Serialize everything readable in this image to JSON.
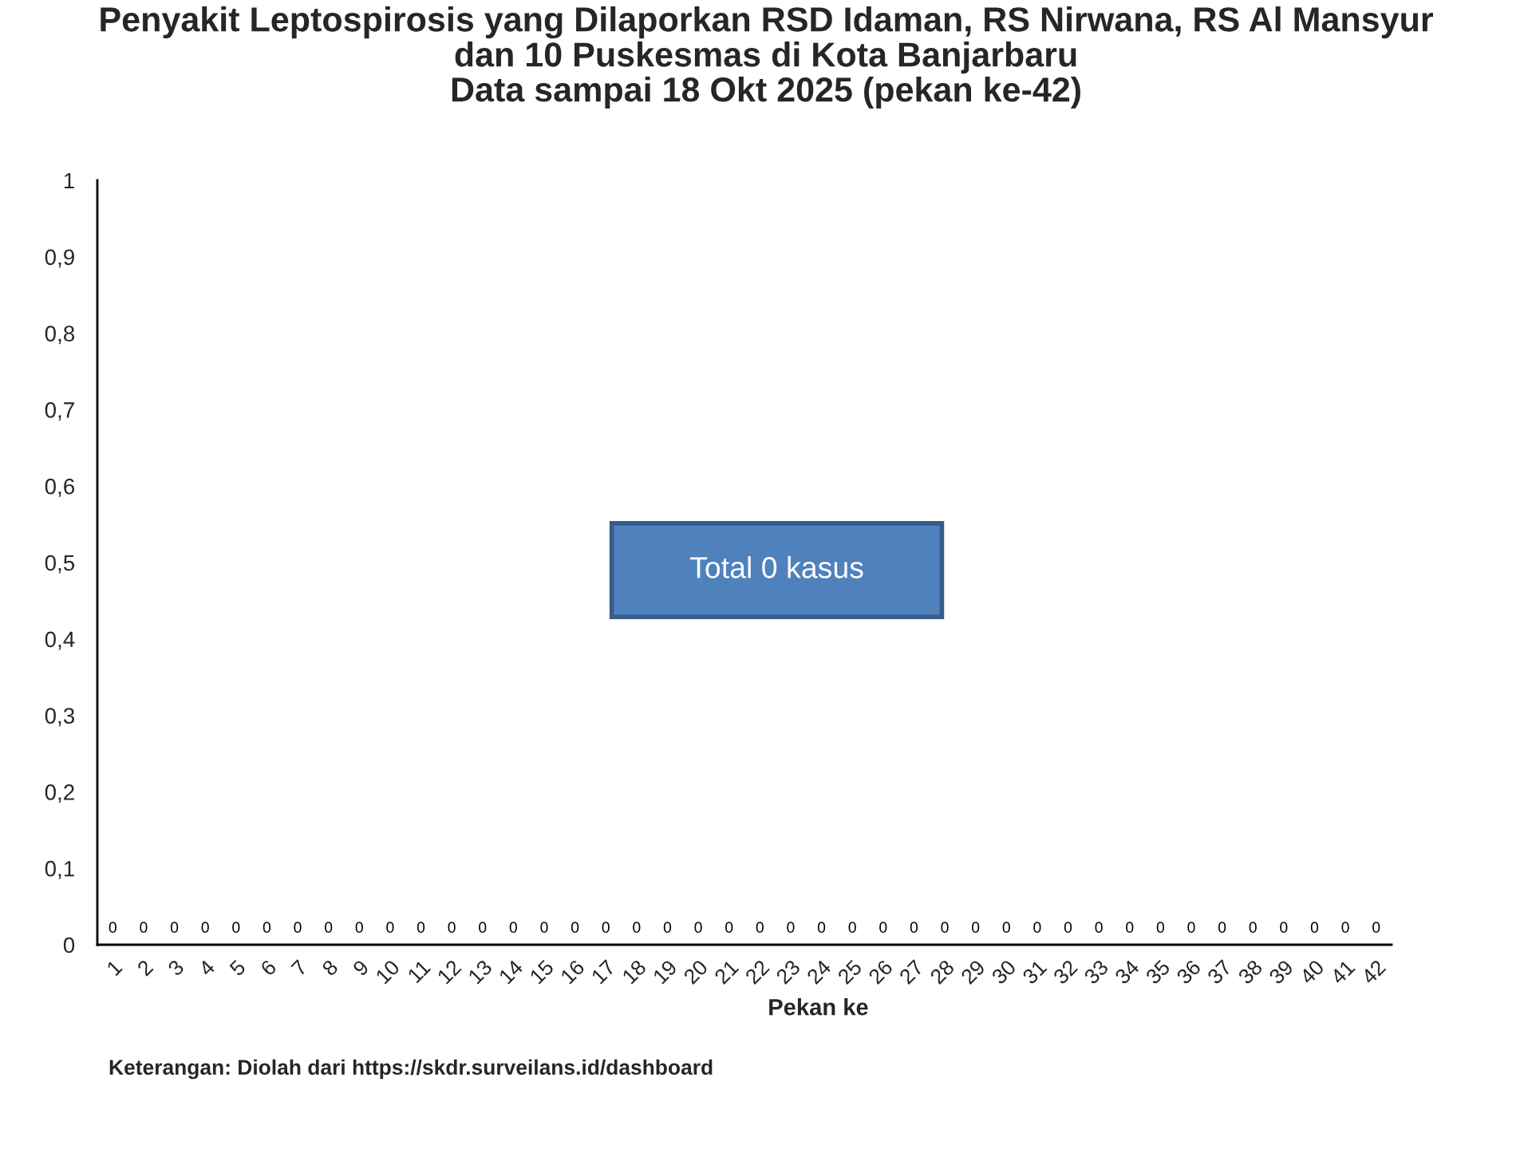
{
  "chart_data": {
    "type": "bar",
    "title": "Penyakit Leptospirosis yang Dilaporkan RSD Idaman, RS Nirwana, RS Al Mansyur\ndan 10 Puskesmas di Kota Banjarbaru\nData sampai 18 Okt 2025 (pekan ke-42)",
    "xlabel": "Pekan ke",
    "categories": [
      "1",
      "2",
      "3",
      "4",
      "5",
      "6",
      "7",
      "8",
      "9",
      "10",
      "11",
      "12",
      "13",
      "14",
      "15",
      "16",
      "17",
      "18",
      "19",
      "20",
      "21",
      "22",
      "23",
      "24",
      "25",
      "26",
      "27",
      "28",
      "29",
      "30",
      "31",
      "32",
      "33",
      "34",
      "35",
      "36",
      "37",
      "38",
      "39",
      "40",
      "41",
      "42"
    ],
    "values": [
      0,
      0,
      0,
      0,
      0,
      0,
      0,
      0,
      0,
      0,
      0,
      0,
      0,
      0,
      0,
      0,
      0,
      0,
      0,
      0,
      0,
      0,
      0,
      0,
      0,
      0,
      0,
      0,
      0,
      0,
      0,
      0,
      0,
      0,
      0,
      0,
      0,
      0,
      0,
      0,
      0,
      0
    ],
    "ylim": [
      0,
      1
    ],
    "yticks": [
      0,
      {
        "value": 0.1,
        "label": "0,1"
      },
      {
        "value": 0.2,
        "label": "0,2"
      },
      {
        "value": 0.3,
        "label": "0,3"
      },
      {
        "value": 0.4,
        "label": "0,4"
      },
      {
        "value": 0.5,
        "label": "0,5"
      },
      {
        "value": 0.6,
        "label": "0,6"
      },
      {
        "value": 0.7,
        "label": "0,7"
      },
      {
        "value": 0.8,
        "label": "0,8"
      },
      {
        "value": 0.9,
        "label": "0,9"
      },
      1
    ],
    "data_labels": true,
    "annotations": [
      "Total 0 kasus",
      "Keterangan: Diolah dari https://skdr.surveilans.id/dashboard"
    ]
  }
}
